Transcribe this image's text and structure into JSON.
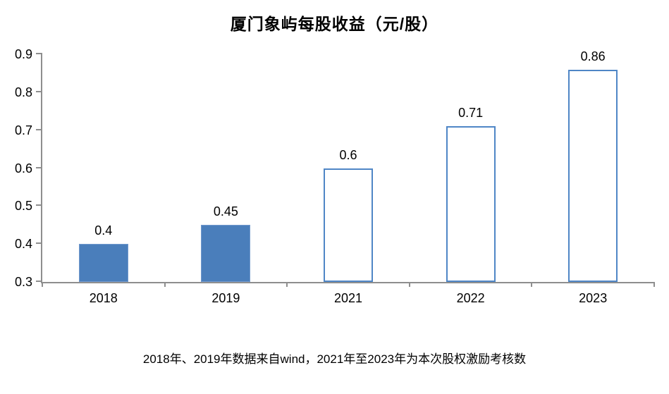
{
  "chart_data": {
    "type": "bar",
    "title": "厦门象屿每股收益（元/股）",
    "categories": [
      "2018",
      "2019",
      "2021",
      "2022",
      "2023"
    ],
    "values": [
      0.4,
      0.45,
      0.6,
      0.71,
      0.86
    ],
    "value_labels": [
      "0.4",
      "0.45",
      "0.6",
      "0.71",
      "0.86"
    ],
    "bar_solid": [
      true,
      true,
      false,
      false,
      false
    ],
    "ylim": [
      0.3,
      0.9
    ],
    "yticks": [
      0.3,
      0.4,
      0.5,
      0.6,
      0.7,
      0.8,
      0.9
    ],
    "ytick_labels": [
      "0.3",
      "0.4",
      "0.5",
      "0.6",
      "0.7",
      "0.8",
      "0.9"
    ],
    "xlabel": "",
    "ylabel": "",
    "grid": false,
    "legend": null,
    "colors": {
      "solid_fill": "#4a7ebb",
      "solid_border": "#7199cd",
      "hollow_fill": "#ffffff",
      "hollow_border": "#4f86c6",
      "axis": "#8e8e8e",
      "text": "#000000"
    }
  },
  "footer": {
    "note": "2018年、2019年数据来自wind，2021年至2023年为本次股权激励考核数"
  }
}
